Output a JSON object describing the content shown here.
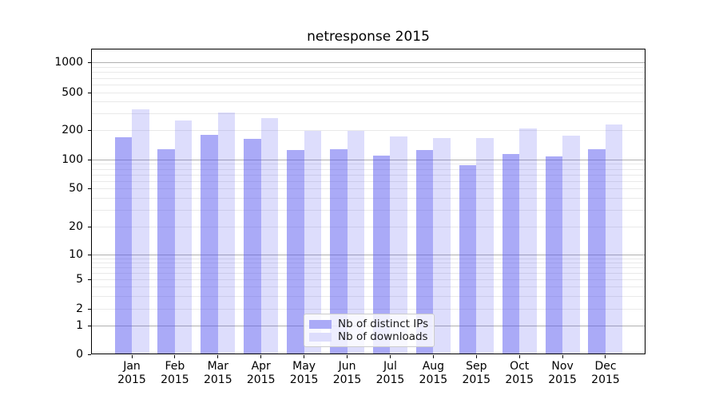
{
  "chart_data": {
    "type": "bar",
    "title": "netresponse 2015",
    "categories": [
      "Jan",
      "Feb",
      "Mar",
      "Apr",
      "May",
      "Jun",
      "Jul",
      "Aug",
      "Sep",
      "Oct",
      "Nov",
      "Dec"
    ],
    "category_year": "2015",
    "x_tick_labels": [
      "Jan 2015",
      "Feb 2015",
      "Mar 2015",
      "Apr 2015",
      "May 2015",
      "Jun 2015",
      "Jul 2015",
      "Aug 2015",
      "Sep 2015",
      "Oct 2015",
      "Nov 2015",
      "Dec 2015"
    ],
    "series": [
      {
        "name": "Nb of distinct IPs",
        "fill": "rgba(85,85,240,0.5)",
        "color_over_white": "#aaaaf7",
        "values": [
          170,
          128,
          179,
          163,
          125,
          128,
          110,
          125,
          87,
          114,
          108,
          128
        ]
      },
      {
        "name": "Nb of downloads",
        "fill": "rgba(85,85,240,0.2)",
        "color_over_white": "#ddddfc",
        "values": [
          332,
          252,
          309,
          266,
          195,
          196,
          172,
          167,
          165,
          208,
          174,
          229
        ]
      }
    ],
    "yscale": "symlog",
    "y_ticks": [
      0,
      1,
      2,
      5,
      10,
      20,
      50,
      100,
      200,
      500,
      1000
    ],
    "y_tick_labels": [
      "0",
      "1",
      "2",
      "5",
      "10",
      "20",
      "50",
      "100",
      "200",
      "500",
      "1000"
    ],
    "y_major_gridlines": [
      1,
      10,
      100,
      1000
    ],
    "y_minor_gridlines": [
      2,
      3,
      4,
      5,
      6,
      7,
      8,
      9,
      20,
      30,
      40,
      50,
      60,
      70,
      80,
      90,
      200,
      300,
      400,
      500,
      600,
      700,
      800,
      900
    ],
    "ylim_top_value": 1400,
    "grid": "horizontal major and minor gridlines",
    "legend_position": "lower center",
    "colors": {
      "major_grid": "#b0b0b0",
      "minor_grid": "#e9e9e9",
      "axis_frame": "#000000",
      "background": "#ffffff"
    }
  },
  "legend": {
    "items": [
      {
        "label": "Nb of distinct IPs"
      },
      {
        "label": "Nb of downloads"
      }
    ]
  }
}
